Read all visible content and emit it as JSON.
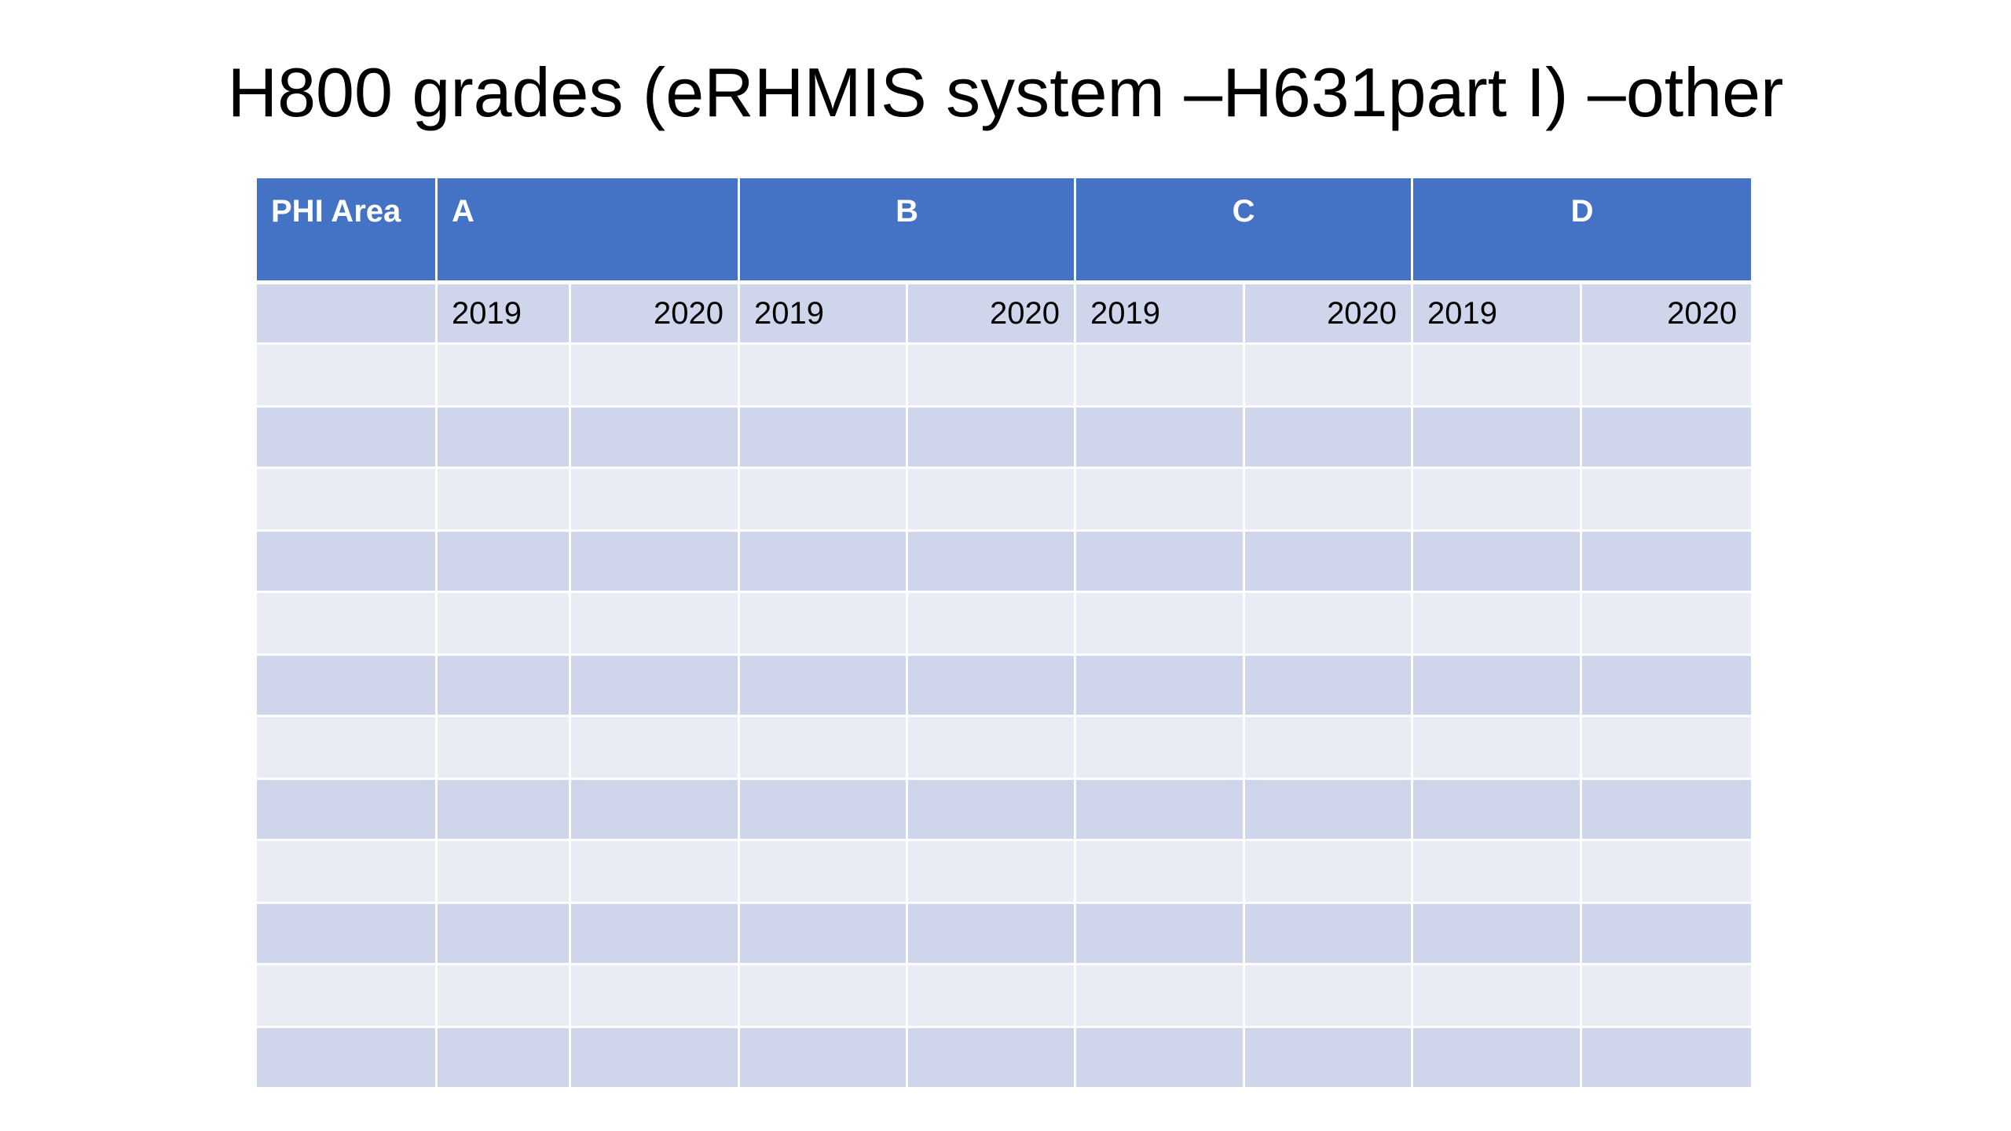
{
  "slide": {
    "title": "H800 grades (eRHMIS system –H631part I) –other"
  },
  "table": {
    "first_header": "PHI Area",
    "groups": [
      "A",
      "B",
      "C",
      "D"
    ],
    "years": [
      "2019",
      "2020"
    ],
    "blank_row_count": 12,
    "colors": {
      "header": "#4472c4",
      "band_dark": "#cfd5ea",
      "band_light": "#e9ebf5"
    }
  }
}
